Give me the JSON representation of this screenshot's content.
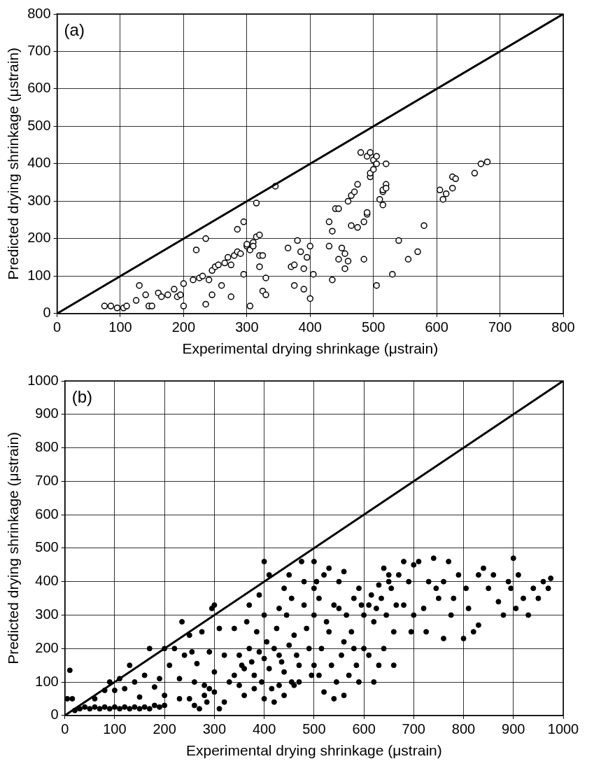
{
  "chart_data": [
    {
      "type": "scatter",
      "title": "(a)",
      "x_label": "Experimental drying shrinkage (μstrain)",
      "y_label": "Predicted drying shrinkage (μstrain)",
      "xlim": [
        0,
        800
      ],
      "xticks": [
        0,
        100,
        200,
        300,
        400,
        500,
        600,
        700,
        800
      ],
      "ylim": [
        0,
        800
      ],
      "yticks": [
        0,
        100,
        200,
        300,
        400,
        500,
        600,
        700,
        800
      ],
      "grid": true,
      "series": [
        {
          "type": "scatter",
          "marker": "circle-open",
          "color": "#000000",
          "x": [
            75,
            85,
            95,
            105,
            110,
            125,
            130,
            140,
            145,
            150,
            160,
            165,
            175,
            185,
            190,
            195,
            200,
            200,
            215,
            220,
            225,
            230,
            235,
            235,
            240,
            245,
            245,
            250,
            255,
            260,
            265,
            270,
            275,
            275,
            280,
            285,
            285,
            290,
            295,
            295,
            300,
            300,
            305,
            305,
            310,
            310,
            315,
            315,
            320,
            320,
            320,
            325,
            325,
            330,
            330,
            345,
            365,
            370,
            375,
            375,
            380,
            385,
            390,
            390,
            395,
            400,
            400,
            405,
            430,
            430,
            435,
            435,
            440,
            445,
            445,
            450,
            455,
            455,
            460,
            460,
            465,
            465,
            470,
            475,
            475,
            480,
            485,
            485,
            490,
            490,
            490,
            495,
            495,
            495,
            500,
            500,
            505,
            505,
            505,
            510,
            515,
            515,
            515,
            520,
            520,
            520,
            530,
            540,
            555,
            570,
            580,
            605,
            610,
            615,
            625,
            625,
            630,
            660,
            670,
            680
          ],
          "values": [
            20,
            20,
            15,
            15,
            20,
            35,
            75,
            50,
            20,
            20,
            55,
            45,
            50,
            65,
            45,
            50,
            80,
            20,
            90,
            170,
            95,
            100,
            200,
            25,
            90,
            115,
            50,
            125,
            130,
            75,
            135,
            150,
            130,
            45,
            155,
            225,
            165,
            160,
            245,
            105,
            180,
            185,
            20,
            170,
            190,
            180,
            295,
            205,
            125,
            155,
            210,
            60,
            155,
            95,
            50,
            340,
            175,
            125,
            130,
            75,
            195,
            165,
            65,
            120,
            150,
            180,
            40,
            105,
            180,
            245,
            220,
            90,
            280,
            145,
            280,
            175,
            160,
            120,
            300,
            140,
            235,
            315,
            325,
            345,
            230,
            430,
            145,
            245,
            420,
            265,
            270,
            365,
            375,
            430,
            385,
            410,
            75,
            400,
            420,
            305,
            290,
            325,
            330,
            345,
            335,
            400,
            105,
            195,
            145,
            165,
            235,
            330,
            305,
            320,
            365,
            335,
            360,
            375,
            400,
            405
          ]
        },
        {
          "type": "line",
          "line_style": "solid",
          "color": "#000000",
          "x": [
            0,
            800
          ],
          "values": [
            0,
            800
          ]
        }
      ]
    },
    {
      "type": "scatter",
      "title": "(b)",
      "x_label": "Experimental drying shrinkage (μstrain)",
      "y_label": "Predicted drying shrinkage (μstrain)",
      "xlim": [
        0,
        1000
      ],
      "xticks": [
        0,
        100,
        200,
        300,
        400,
        500,
        600,
        700,
        800,
        900,
        1000
      ],
      "ylim": [
        0,
        1000
      ],
      "yticks": [
        0,
        100,
        200,
        300,
        400,
        500,
        600,
        700,
        800,
        900,
        1000
      ],
      "grid": true,
      "series": [
        {
          "type": "scatter",
          "marker": "circle",
          "color": "#000000",
          "x": [
            5,
            10,
            15,
            20,
            30,
            40,
            50,
            60,
            70,
            80,
            90,
            100,
            110,
            120,
            130,
            140,
            150,
            160,
            170,
            180,
            190,
            200,
            60,
            80,
            100,
            120,
            140,
            150,
            160,
            170,
            180,
            190,
            200,
            200,
            130,
            110,
            90,
            210,
            220,
            230,
            240,
            250,
            255,
            260,
            265,
            270,
            275,
            280,
            285,
            290,
            295,
            300,
            300,
            300,
            310,
            320,
            330,
            320,
            340,
            250,
            235,
            290,
            260,
            310,
            230,
            280,
            350,
            355,
            360,
            365,
            370,
            375,
            380,
            385,
            390,
            395,
            400,
            400,
            400,
            405,
            410,
            415,
            420,
            425,
            430,
            435,
            440,
            440,
            445,
            450,
            450,
            455,
            460,
            465,
            470,
            475,
            480,
            485,
            490,
            495,
            360,
            380,
            400,
            420,
            440,
            460,
            390,
            410,
            430,
            370,
            350,
            340,
            470,
            480,
            455,
            430,
            500,
            500,
            500,
            505,
            510,
            515,
            520,
            525,
            530,
            535,
            540,
            545,
            550,
            555,
            560,
            565,
            570,
            575,
            580,
            585,
            590,
            595,
            600,
            600,
            520,
            540,
            560,
            580,
            500,
            530,
            560,
            510,
            550,
            590,
            610,
            615,
            620,
            625,
            630,
            635,
            640,
            645,
            650,
            655,
            660,
            665,
            670,
            680,
            690,
            700,
            700,
            610,
            630,
            650,
            620,
            640,
            660,
            680,
            695,
            710,
            720,
            730,
            740,
            745,
            750,
            760,
            770,
            775,
            780,
            790,
            800,
            805,
            810,
            820,
            830,
            840,
            850,
            860,
            870,
            880,
            890,
            895,
            900,
            905,
            910,
            920,
            930,
            940,
            950,
            960,
            970,
            975,
            830,
            760,
            725
          ],
          "values": [
            50,
            135,
            50,
            15,
            20,
            25,
            20,
            25,
            20,
            25,
            20,
            25,
            20,
            25,
            20,
            25,
            20,
            25,
            20,
            30,
            25,
            30,
            50,
            75,
            75,
            80,
            100,
            55,
            120,
            200,
            85,
            110,
            60,
            200,
            150,
            110,
            100,
            150,
            200,
            110,
            180,
            50,
            190,
            100,
            155,
            20,
            250,
            90,
            40,
            80,
            320,
            330,
            130,
            70,
            260,
            180,
            100,
            40,
            120,
            240,
            280,
            190,
            30,
            20,
            50,
            60,
            180,
            150,
            140,
            280,
            200,
            160,
            120,
            250,
            190,
            100,
            170,
            300,
            460,
            220,
            140,
            80,
            200,
            260,
            180,
            160,
            130,
            380,
            300,
            210,
            420,
            100,
            240,
            180,
            150,
            460,
            330,
            260,
            200,
            120,
            60,
            80,
            50,
            40,
            60,
            90,
            360,
            420,
            320,
            330,
            90,
            260,
            100,
            400,
            350,
            90,
            380,
            300,
            150,
            400,
            350,
            200,
            420,
            280,
            250,
            150,
            330,
            100,
            400,
            180,
            430,
            300,
            120,
            250,
            200,
            150,
            380,
            330,
            300,
            200,
            70,
            50,
            220,
            350,
            460,
            440,
            60,
            120,
            320,
            100,
            330,
            360,
            280,
            320,
            390,
            350,
            200,
            300,
            400,
            380,
            250,
            330,
            420,
            460,
            400,
            450,
            300,
            180,
            150,
            420,
            100,
            440,
            150,
            330,
            250,
            460,
            320,
            400,
            470,
            380,
            350,
            400,
            460,
            300,
            350,
            420,
            230,
            380,
            320,
            250,
            420,
            440,
            380,
            420,
            340,
            300,
            400,
            380,
            470,
            320,
            420,
            350,
            300,
            380,
            350,
            400,
            380,
            410,
            270,
            230,
            250
          ]
        },
        {
          "type": "line",
          "line_style": "solid",
          "color": "#000000",
          "x": [
            0,
            1000
          ],
          "values": [
            0,
            1000
          ]
        }
      ]
    }
  ]
}
